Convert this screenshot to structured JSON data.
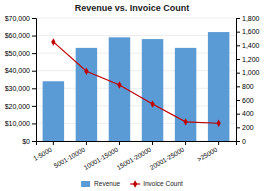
{
  "chart_data": {
    "type": "bar",
    "title": "Revenue vs. Invoice Count",
    "categories": [
      "1-5000",
      "5001-10000",
      "10001-15000",
      "15001-20000",
      "20001-25000",
      ">25000"
    ],
    "series": [
      {
        "name": "Revenue",
        "type": "bar",
        "color": "#5B9BD5",
        "values": [
          34000,
          53000,
          59000,
          58000,
          53000,
          62000
        ]
      },
      {
        "name": "Invoice Count",
        "type": "line",
        "color": "#C00000",
        "marker": "diamond",
        "axis": "y2",
        "values": [
          1450,
          1020,
          820,
          540,
          280,
          260
        ]
      }
    ],
    "ylim": [
      0,
      70000
    ],
    "yticks": [
      {
        "value": 0,
        "label": "$0"
      },
      {
        "value": 10000,
        "label": "$10,000"
      },
      {
        "value": 20000,
        "label": "$20,000"
      },
      {
        "value": 30000,
        "label": "$30,000"
      },
      {
        "value": 40000,
        "label": "$40,000"
      },
      {
        "value": 50000,
        "label": "$50,000"
      },
      {
        "value": 60000,
        "label": "$60,000"
      },
      {
        "value": 70000,
        "label": "$70,000"
      }
    ],
    "y2lim": [
      0,
      1800
    ],
    "y2ticks": [
      0,
      200,
      400,
      600,
      800,
      {
        "value": 1000,
        "label": "1,000"
      },
      {
        "value": 1200,
        "label": "1,200"
      },
      {
        "value": 1400,
        "label": "1,400"
      },
      {
        "value": 1600,
        "label": "1,600"
      },
      {
        "value": 1800,
        "label": "1,800"
      }
    ],
    "grid": true,
    "legend": "bottom"
  }
}
